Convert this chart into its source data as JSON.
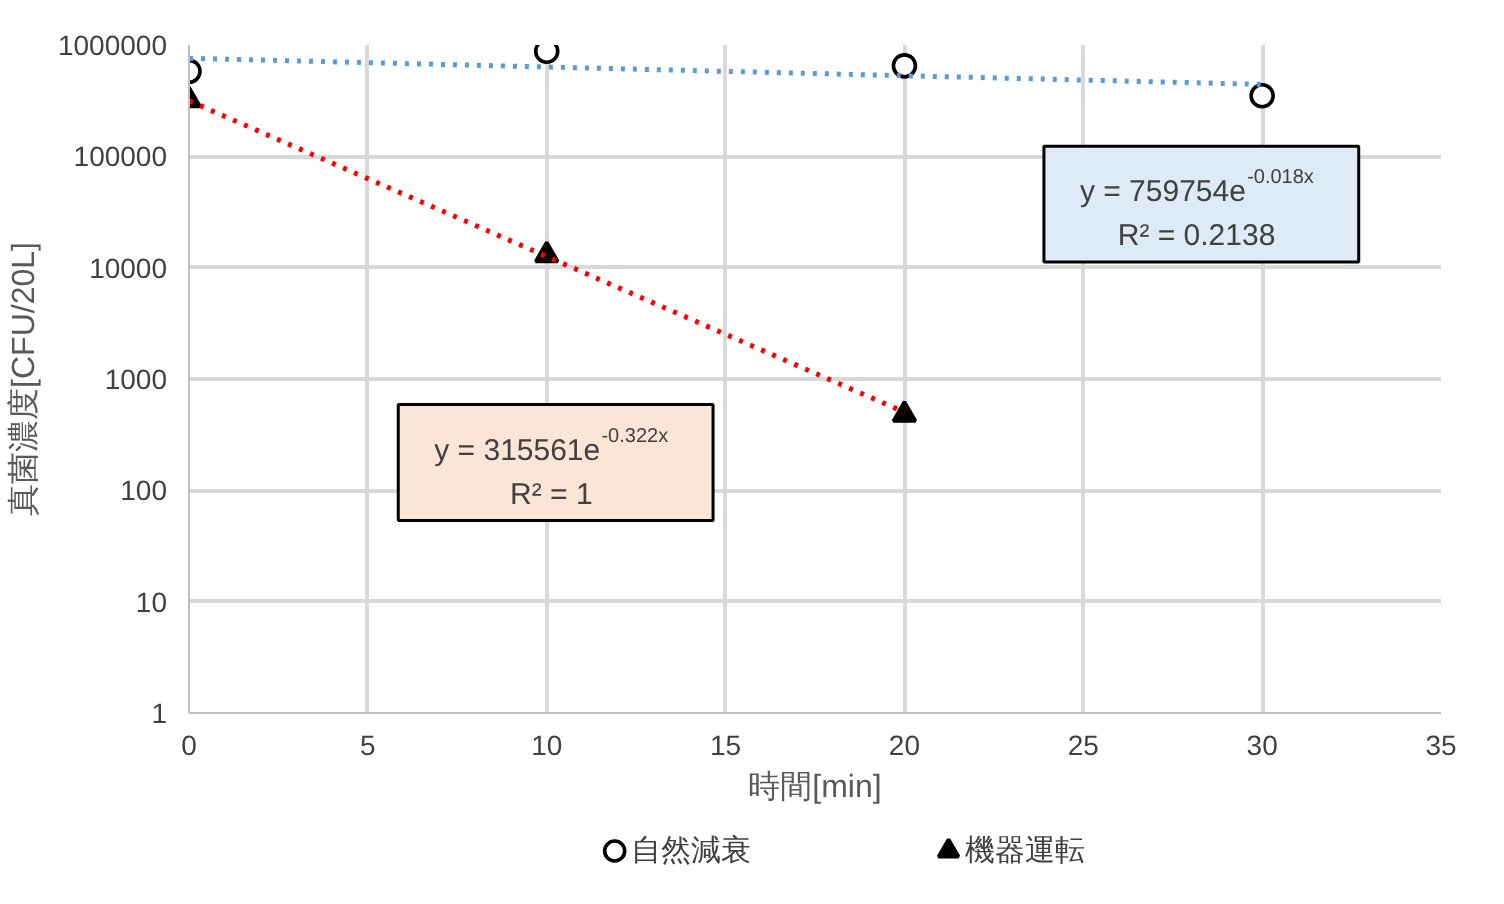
{
  "chart_data": {
    "type": "scatter",
    "xlabel": "時間[min]",
    "ylabel": "真菌濃度[CFU/20L]",
    "xlim": [
      0,
      35
    ],
    "xticks": [
      0,
      5,
      10,
      15,
      20,
      25,
      30,
      35
    ],
    "ylim": [
      1,
      1000000
    ],
    "yticks": [
      1,
      10,
      100,
      1000,
      10000,
      100000,
      1000000
    ],
    "log": "y",
    "grid": true,
    "legend": "bottom",
    "series": [
      {
        "name": "自然減衰",
        "type": "scatter",
        "marker": "circle",
        "color": "#000000",
        "x": [
          0,
          10,
          20,
          30
        ],
        "values": [
          580000,
          880000,
          650000,
          350000
        ]
      },
      {
        "name": "機器運転",
        "type": "scatter",
        "marker": "triangle",
        "color": "#000000",
        "x": [
          0,
          10,
          20
        ],
        "values": [
          320000,
          13000,
          480
        ]
      },
      {
        "type": "line",
        "line_style": "dotted",
        "color": "#5b9bd5",
        "x": [
          0,
          30
        ],
        "values": [
          759754,
          442700
        ]
      },
      {
        "type": "line",
        "line_style": "dotted",
        "color": "#ff0000",
        "x": [
          0,
          20
        ],
        "values": [
          315561,
          504
        ]
      }
    ],
    "annotations": [
      "y = 759754e$^{-0.018x}$",
      "R² = 0.2138",
      "y = 315561e$^{-0.322x}$",
      "R² = 1"
    ]
  }
}
